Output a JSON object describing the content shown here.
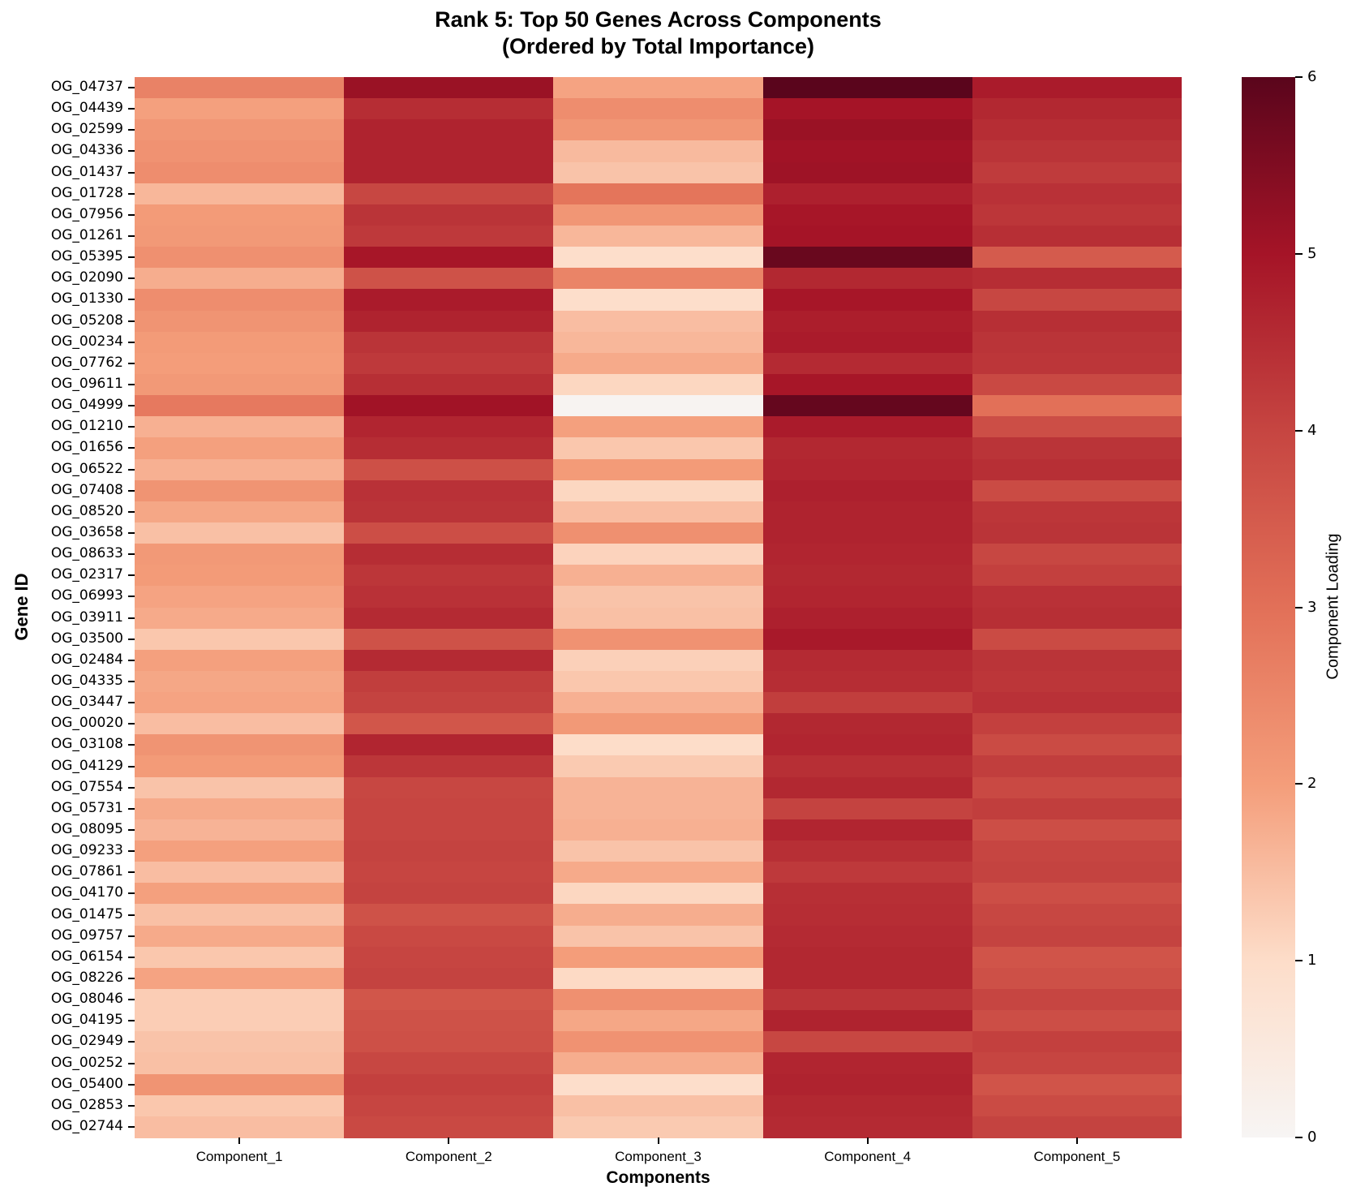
{
  "title": {
    "line1": "Rank 5: Top 50 Genes Across Components",
    "line2": "(Ordered by Total Importance)"
  },
  "colors": {
    "background": "#ffffff",
    "text": "#000000",
    "colormap_stops": [
      "#f7f5f4",
      "#fdddc9",
      "#f49d7a",
      "#e27058",
      "#c64541",
      "#a51427",
      "#5a051c"
    ]
  },
  "chart_data": {
    "type": "heatmap",
    "title": "Rank 5: Top 50 Genes Across Components (Ordered by Total Importance)",
    "xlabel": "Components",
    "ylabel": "Gene ID",
    "colorbar_label": "Component Loading",
    "colorbar_ticks": [
      0,
      1,
      2,
      3,
      4,
      5,
      6
    ],
    "vmin": 0,
    "vmax": 6,
    "legend_position": "right",
    "grid": false,
    "columns": [
      "Component_1",
      "Component_2",
      "Component_3",
      "Component_4",
      "Component_5"
    ],
    "rows": [
      "OG_04737",
      "OG_04439",
      "OG_02599",
      "OG_04336",
      "OG_01437",
      "OG_01728",
      "OG_07956",
      "OG_01261",
      "OG_05395",
      "OG_02090",
      "OG_01330",
      "OG_05208",
      "OG_00234",
      "OG_07762",
      "OG_09611",
      "OG_04999",
      "OG_01210",
      "OG_01656",
      "OG_06522",
      "OG_07408",
      "OG_08520",
      "OG_03658",
      "OG_08633",
      "OG_02317",
      "OG_06993",
      "OG_03911",
      "OG_03500",
      "OG_02484",
      "OG_04335",
      "OG_03447",
      "OG_00020",
      "OG_03108",
      "OG_04129",
      "OG_07554",
      "OG_05731",
      "OG_08095",
      "OG_09233",
      "OG_07861",
      "OG_04170",
      "OG_01475",
      "OG_09757",
      "OG_06154",
      "OG_08226",
      "OG_08046",
      "OG_04195",
      "OG_02949",
      "OG_00252",
      "OG_05400",
      "OG_02853",
      "OG_02744"
    ],
    "values": [
      [
        2.6,
        5.15,
        1.9,
        6.0,
        4.85
      ],
      [
        1.95,
        4.5,
        2.35,
        5.0,
        4.6
      ],
      [
        2.15,
        4.7,
        2.15,
        5.15,
        4.5
      ],
      [
        2.25,
        4.7,
        1.55,
        5.05,
        4.35
      ],
      [
        2.35,
        4.7,
        1.4,
        5.1,
        4.2
      ],
      [
        1.6,
        3.95,
        2.9,
        4.75,
        4.4
      ],
      [
        2.05,
        4.35,
        2.15,
        4.95,
        4.3
      ],
      [
        2.1,
        4.25,
        1.6,
        5.0,
        4.45
      ],
      [
        2.3,
        4.95,
        0.95,
        5.8,
        3.5
      ],
      [
        1.75,
        3.7,
        2.55,
        4.6,
        4.5
      ],
      [
        2.35,
        4.85,
        0.95,
        4.95,
        3.95
      ],
      [
        2.2,
        4.7,
        1.5,
        4.8,
        4.45
      ],
      [
        2.05,
        4.35,
        1.6,
        4.85,
        4.35
      ],
      [
        2.0,
        4.25,
        1.8,
        4.55,
        4.3
      ],
      [
        2.1,
        4.45,
        1.1,
        4.95,
        3.9
      ],
      [
        2.8,
        5.05,
        0.08,
        5.85,
        3.0
      ],
      [
        1.7,
        4.65,
        1.95,
        4.85,
        3.8
      ],
      [
        1.95,
        4.5,
        1.35,
        4.6,
        4.35
      ],
      [
        1.7,
        3.75,
        2.05,
        4.65,
        4.45
      ],
      [
        2.2,
        4.4,
        1.1,
        4.75,
        3.85
      ],
      [
        1.85,
        4.35,
        1.5,
        4.7,
        4.3
      ],
      [
        1.45,
        3.8,
        2.3,
        4.7,
        4.35
      ],
      [
        2.1,
        4.5,
        1.15,
        4.65,
        3.95
      ],
      [
        2.05,
        4.3,
        1.7,
        4.6,
        4.1
      ],
      [
        1.9,
        4.4,
        1.4,
        4.65,
        4.4
      ],
      [
        1.8,
        4.55,
        1.45,
        4.75,
        4.45
      ],
      [
        1.35,
        3.7,
        2.25,
        4.9,
        3.85
      ],
      [
        1.95,
        4.55,
        1.2,
        4.55,
        4.35
      ],
      [
        1.85,
        4.15,
        1.35,
        4.5,
        4.3
      ],
      [
        1.9,
        4.05,
        1.7,
        4.15,
        4.4
      ],
      [
        1.5,
        3.6,
        2.1,
        4.6,
        4.1
      ],
      [
        2.2,
        4.65,
        1.0,
        4.65,
        3.85
      ],
      [
        2.05,
        4.3,
        1.3,
        4.45,
        4.15
      ],
      [
        1.4,
        3.95,
        1.65,
        4.6,
        3.9
      ],
      [
        1.8,
        4.0,
        1.65,
        4.05,
        4.15
      ],
      [
        1.65,
        4.0,
        1.7,
        4.65,
        3.8
      ],
      [
        1.95,
        4.05,
        1.4,
        4.45,
        4.0
      ],
      [
        1.5,
        4.0,
        1.8,
        4.25,
        4.05
      ],
      [
        1.95,
        4.05,
        1.1,
        4.45,
        3.8
      ],
      [
        1.45,
        3.7,
        1.75,
        4.5,
        3.95
      ],
      [
        1.8,
        3.9,
        1.4,
        4.55,
        4.05
      ],
      [
        1.35,
        4.0,
        2.0,
        4.6,
        3.65
      ],
      [
        1.9,
        4.05,
        1.05,
        4.6,
        3.75
      ],
      [
        1.25,
        3.6,
        2.3,
        4.35,
        4.0
      ],
      [
        1.25,
        3.7,
        1.85,
        4.7,
        3.8
      ],
      [
        1.4,
        3.75,
        2.25,
        3.95,
        4.1
      ],
      [
        1.45,
        3.95,
        1.75,
        4.65,
        4.0
      ],
      [
        2.2,
        4.1,
        0.95,
        4.7,
        3.65
      ],
      [
        1.35,
        4.0,
        1.45,
        4.6,
        3.85
      ],
      [
        1.5,
        3.9,
        1.3,
        4.55,
        4.05
      ]
    ]
  }
}
